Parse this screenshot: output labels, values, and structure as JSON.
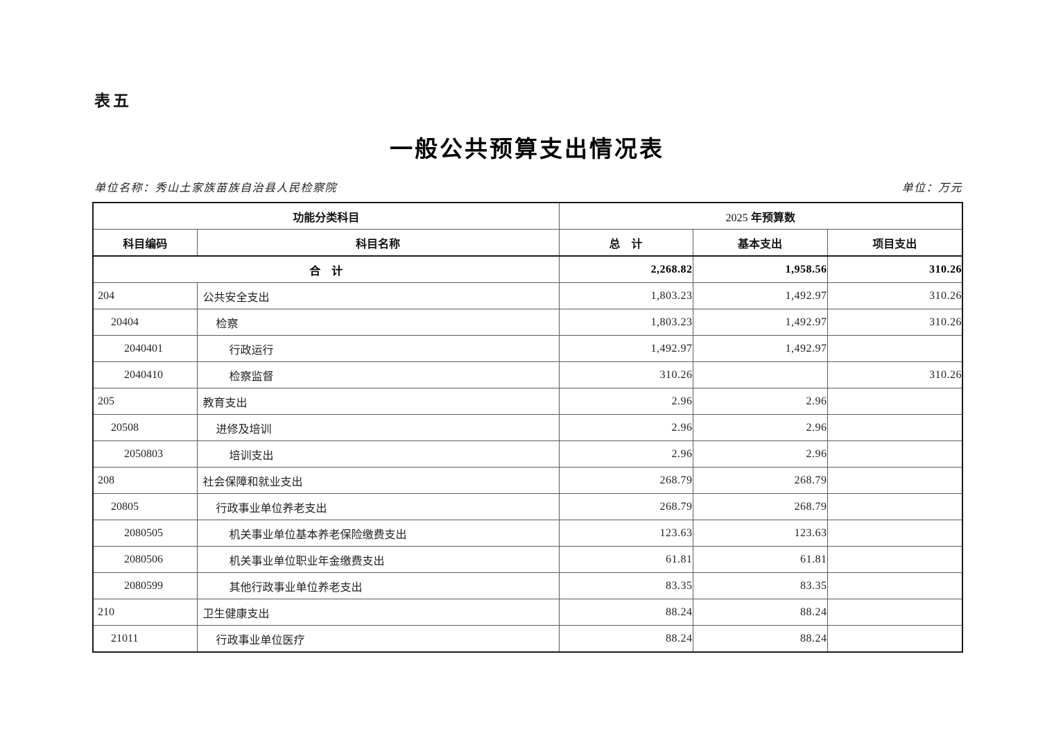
{
  "page": {
    "table_label": "表五",
    "title": "一般公共预算支出情况表",
    "unit_name": "单位名称：秀山土家族苗族自治县人民检察院",
    "unit_of_measure": "单位：万元"
  },
  "table": {
    "header": {
      "function_category": "功能分类科目",
      "year": "2025",
      "year_suffix": " 年预算数",
      "code": "科目编码",
      "name": "科目名称",
      "total": "总　计",
      "basic": "基本支出",
      "project": "项目支出"
    },
    "total_row": {
      "name": "合　计",
      "total": "2,268.82",
      "basic": "1,958.56",
      "project": "310.26"
    },
    "rows": [
      {
        "code": "204",
        "name": "公共安全支出",
        "level": 1,
        "total": "1,803.23",
        "basic": "1,492.97",
        "project": "310.26"
      },
      {
        "code": "20404",
        "name": "检察",
        "level": 2,
        "total": "1,803.23",
        "basic": "1,492.97",
        "project": "310.26"
      },
      {
        "code": "2040401",
        "name": "行政运行",
        "level": 3,
        "total": "1,492.97",
        "basic": "1,492.97",
        "project": ""
      },
      {
        "code": "2040410",
        "name": "检察监督",
        "level": 3,
        "total": "310.26",
        "basic": "",
        "project": "310.26"
      },
      {
        "code": "205",
        "name": "教育支出",
        "level": 1,
        "total": "2.96",
        "basic": "2.96",
        "project": ""
      },
      {
        "code": "20508",
        "name": "进修及培训",
        "level": 2,
        "total": "2.96",
        "basic": "2.96",
        "project": ""
      },
      {
        "code": "2050803",
        "name": "培训支出",
        "level": 3,
        "total": "2.96",
        "basic": "2.96",
        "project": ""
      },
      {
        "code": "208",
        "name": "社会保障和就业支出",
        "level": 1,
        "total": "268.79",
        "basic": "268.79",
        "project": ""
      },
      {
        "code": "20805",
        "name": "行政事业单位养老支出",
        "level": 2,
        "total": "268.79",
        "basic": "268.79",
        "project": ""
      },
      {
        "code": "2080505",
        "name": "机关事业单位基本养老保险缴费支出",
        "level": 3,
        "total": "123.63",
        "basic": "123.63",
        "project": ""
      },
      {
        "code": "2080506",
        "name": "机关事业单位职业年金缴费支出",
        "level": 3,
        "total": "61.81",
        "basic": "61.81",
        "project": ""
      },
      {
        "code": "2080599",
        "name": "其他行政事业单位养老支出",
        "level": 3,
        "total": "83.35",
        "basic": "83.35",
        "project": ""
      },
      {
        "code": "210",
        "name": "卫生健康支出",
        "level": 1,
        "total": "88.24",
        "basic": "88.24",
        "project": ""
      },
      {
        "code": "21011",
        "name": "行政事业单位医疗",
        "level": 2,
        "total": "88.24",
        "basic": "88.24",
        "project": ""
      }
    ]
  }
}
